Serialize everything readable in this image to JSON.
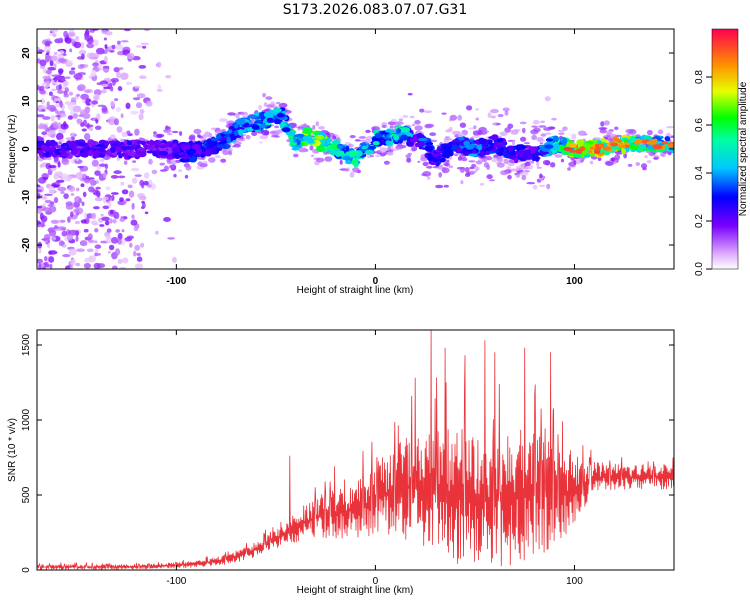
{
  "title": "S173.2026.083.07.07.G31",
  "colors": {
    "snr_line": "#e8333a",
    "axis": "#000000",
    "background": "#ffffff"
  },
  "chart_data": [
    {
      "type": "heatmap",
      "name": "spectrogram",
      "xlabel": "Height of straight line (km)",
      "ylabel": "Frequency (Hz)",
      "xlim": [
        -170,
        150
      ],
      "ylim": [
        -25,
        25
      ],
      "xticks": [
        -100,
        0,
        100
      ],
      "xtick_labels": [
        "-100",
        "0",
        "100"
      ],
      "yticks": [
        -20,
        -10,
        0,
        10,
        20
      ],
      "ytick_labels": [
        "-20",
        "-10",
        "0",
        "10",
        "20"
      ],
      "colorbar": {
        "label": "Normalized spectral amplitude",
        "range": [
          0.0,
          1.0
        ],
        "ticks": [
          0.0,
          0.2,
          0.4,
          0.6,
          0.8
        ],
        "tick_labels": [
          "0.0",
          "0.2",
          "0.4",
          "0.6",
          "0.8"
        ]
      },
      "ridge": {
        "x": [
          -105,
          -95,
          -85,
          -75,
          -65,
          -55,
          -47,
          -40,
          -35,
          -25,
          -15,
          -10,
          -5,
          0,
          5,
          10,
          15,
          20,
          25,
          30,
          40,
          50,
          60,
          70,
          80,
          90,
          100,
          110,
          120,
          130,
          140,
          150
        ],
        "freq": [
          0,
          -1,
          0,
          2,
          5,
          6,
          7,
          1,
          3,
          1,
          -1,
          -2,
          0,
          2,
          2,
          3,
          3,
          2,
          1,
          -2,
          1,
          0,
          1,
          -1,
          -1,
          1,
          0,
          0,
          1,
          1,
          1,
          1
        ],
        "amplitude": [
          0.25,
          0.3,
          0.35,
          0.4,
          0.45,
          0.5,
          0.45,
          0.6,
          0.75,
          0.7,
          0.5,
          0.6,
          0.45,
          0.5,
          0.4,
          0.55,
          0.5,
          0.3,
          0.4,
          0.3,
          0.35,
          0.4,
          0.35,
          0.3,
          0.3,
          0.55,
          0.7,
          0.8,
          0.85,
          0.7,
          0.6,
          0.55
        ]
      }
    },
    {
      "type": "line",
      "name": "snr",
      "xlabel": "Height of straight line (km)",
      "ylabel": "SNR (10 * v/v)",
      "xlim": [
        -170,
        150
      ],
      "ylim": [
        0,
        1600
      ],
      "xticks": [
        -100,
        0,
        100
      ],
      "xtick_labels": [
        "-100",
        "0",
        "100"
      ],
      "yticks": [
        0,
        500,
        1000,
        1500
      ],
      "ytick_labels": [
        "0",
        "500",
        "1000",
        "1500"
      ],
      "envelope": {
        "x": [
          -170,
          -130,
          -110,
          -90,
          -75,
          -65,
          -55,
          -45,
          -35,
          -25,
          -15,
          -5,
          0,
          10,
          20,
          30,
          40,
          50,
          60,
          70,
          80,
          90,
          100,
          105,
          110,
          120,
          130,
          140,
          150
        ],
        "base": [
          20,
          20,
          25,
          40,
          70,
          110,
          170,
          240,
          320,
          370,
          390,
          420,
          470,
          520,
          560,
          520,
          500,
          480,
          460,
          480,
          500,
          500,
          540,
          560,
          620,
          620,
          620,
          620,
          620
        ],
        "spread": [
          15,
          15,
          15,
          20,
          30,
          40,
          50,
          70,
          110,
          150,
          170,
          190,
          220,
          280,
          330,
          380,
          420,
          420,
          420,
          420,
          380,
          330,
          220,
          130,
          90,
          80,
          80,
          80,
          80
        ]
      },
      "spikes": [
        {
          "x": -43,
          "y": 760
        },
        {
          "x": 20,
          "y": 1280
        },
        {
          "x": 28,
          "y": 1600
        },
        {
          "x": 35,
          "y": 1480
        },
        {
          "x": 45,
          "y": 1430
        },
        {
          "x": 55,
          "y": 1530
        },
        {
          "x": 60,
          "y": 1450
        },
        {
          "x": 75,
          "y": 1480
        },
        {
          "x": 88,
          "y": 1450
        }
      ]
    }
  ]
}
